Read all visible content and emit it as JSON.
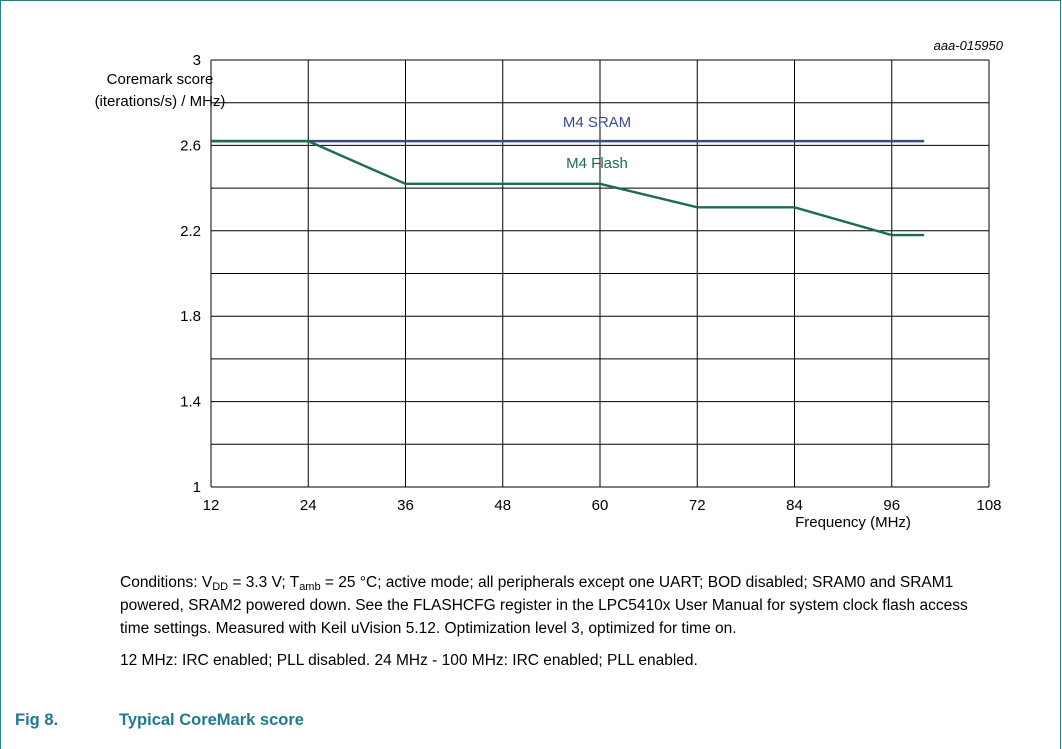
{
  "figure_id": "aaa-015950",
  "chart_data": {
    "type": "line",
    "ylabel_lines": [
      "Coremark score",
      "(iterations/s) / MHz)"
    ],
    "xlabel": "Frequency (MHz)",
    "xlim": [
      12,
      108
    ],
    "ylim": [
      1,
      3
    ],
    "x_ticks": [
      "12",
      "24",
      "36",
      "48",
      "60",
      "72",
      "84",
      "96",
      "108"
    ],
    "y_ticks": [
      "1",
      "1.4",
      "1.8",
      "2.2",
      "2.6",
      "3"
    ],
    "grid": true,
    "series": [
      {
        "name": "M4 SRAM",
        "color": "#3a4a8c",
        "x": [
          12,
          100
        ],
        "y": [
          2.62,
          2.62
        ]
      },
      {
        "name": "M4 Flash",
        "color": "#1d6b50",
        "x": [
          12,
          24,
          36,
          60,
          72,
          84,
          96,
          100
        ],
        "y": [
          2.62,
          2.62,
          2.42,
          2.42,
          2.31,
          2.31,
          2.18,
          2.18
        ]
      }
    ]
  },
  "caption": {
    "conditions_parts": {
      "p1": "Conditions: V",
      "vdd_sub": "DD",
      "p2": " = 3.3 V; T",
      "tamb_sub": "amb",
      "p3": " = 25 °C; active mode; all peripherals except one UART; BOD disabled; SRAM0 and SRAM1 powered, SRAM2 powered down. See the FLASHCFG register in the LPC5410x User Manual for system clock flash access time settings. Measured with Keil uVision 5.12. Optimization level 3, optimized for time on."
    },
    "note": "12 MHz: IRC enabled; PLL disabled. 24 MHz - 100 MHz: IRC enabled; PLL enabled."
  },
  "figure_title": {
    "number": "Fig 8.",
    "text": "Typical CoreMark score"
  }
}
